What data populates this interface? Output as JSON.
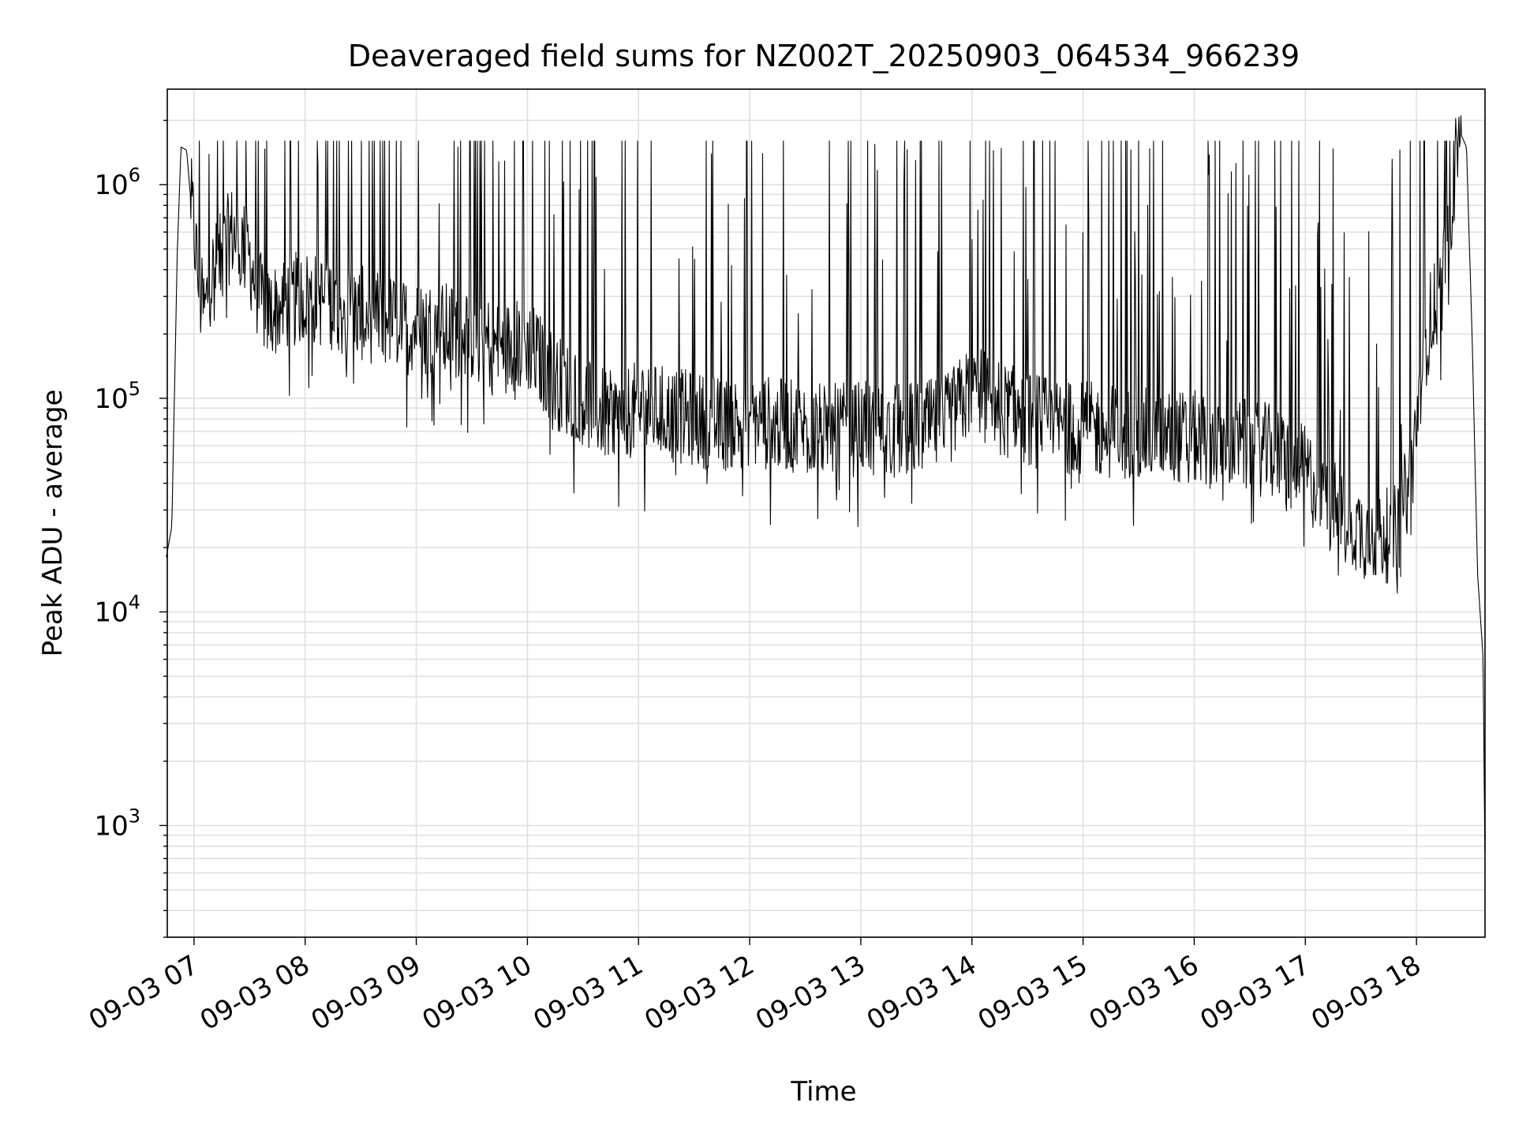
{
  "chart_data": {
    "type": "line",
    "title": "Deaveraged field sums for NZ002T_20250903_064534_966239",
    "xlabel": "Time",
    "ylabel": "Peak ADU - average",
    "yscale": "log",
    "ylim": [
      300,
      2800000
    ],
    "xlim": [
      "2025-09-03 06:45:34",
      "2025-09-03 18:37:00"
    ],
    "grid": true,
    "line_color": "#000000",
    "grid_color": "#e0e0e0",
    "x_ticks": [
      "09-03 07",
      "09-03 08",
      "09-03 09",
      "09-03 10",
      "09-03 11",
      "09-03 12",
      "09-03 13",
      "09-03 14",
      "09-03 15",
      "09-03 16",
      "09-03 17",
      "09-03 18"
    ],
    "y_ticks": [
      {
        "value": 1000,
        "base": "10",
        "exp": "3"
      },
      {
        "value": 10000,
        "base": "10",
        "exp": "4"
      },
      {
        "value": 100000,
        "base": "10",
        "exp": "5"
      },
      {
        "value": 1000000,
        "base": "10",
        "exp": "6"
      }
    ],
    "series": [
      {
        "x": [
          "06:45",
          "06:48",
          "06:51",
          "06:53",
          "06:56",
          "06:58",
          "07:01",
          "07:03",
          "07:06",
          "07:08",
          "07:11",
          "07:15",
          "07:20",
          "07:25",
          "07:30",
          "07:35",
          "07:40",
          "07:50",
          "08:00",
          "08:15",
          "08:30",
          "08:45",
          "09:00",
          "09:15",
          "09:30",
          "09:45",
          "10:00",
          "10:15",
          "10:30",
          "10:45",
          "11:00",
          "11:15",
          "11:30",
          "11:45",
          "12:00",
          "12:15",
          "12:30",
          "12:45",
          "13:00",
          "13:15",
          "13:30",
          "13:45",
          "14:00",
          "14:15",
          "14:30",
          "14:45",
          "15:00",
          "15:15",
          "15:30",
          "15:45",
          "16:00",
          "16:15",
          "16:30",
          "16:45",
          "17:00",
          "17:10",
          "17:20",
          "17:30",
          "17:40",
          "17:50",
          "17:58",
          "18:03",
          "18:08",
          "18:13",
          "18:18",
          "18:23",
          "18:27",
          "18:30",
          "18:33",
          "18:36",
          "18:37"
        ],
        "y": [
          18000,
          25000,
          500000,
          1500000,
          1450000,
          900000,
          500000,
          300000,
          250000,
          350000,
          400000,
          450000,
          600000,
          550000,
          450000,
          300000,
          250000,
          280000,
          300000,
          280000,
          250000,
          230000,
          220000,
          210000,
          200000,
          170000,
          180000,
          120000,
          100000,
          80000,
          90000,
          85000,
          80000,
          75000,
          80000,
          75000,
          72000,
          70000,
          72000,
          70000,
          72000,
          75000,
          110000,
          90000,
          80000,
          75000,
          72000,
          70000,
          68000,
          66000,
          65000,
          62000,
          60000,
          55000,
          45000,
          35000,
          28000,
          24000,
          22000,
          24000,
          50000,
          150000,
          250000,
          300000,
          700000,
          1800000,
          1500000,
          200000,
          15000,
          6000,
          600
        ]
      }
    ]
  }
}
